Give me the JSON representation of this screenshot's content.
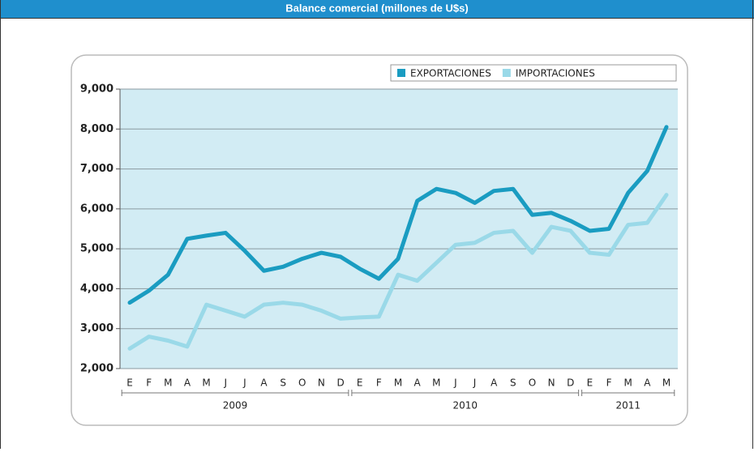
{
  "chart_data": {
    "type": "line",
    "title": "Balance comercial (millones de U$s)",
    "categories": [
      "E",
      "F",
      "M",
      "A",
      "M",
      "J",
      "J",
      "A",
      "S",
      "O",
      "N",
      "D",
      "E",
      "F",
      "M",
      "A",
      "M",
      "J",
      "J",
      "A",
      "S",
      "O",
      "N",
      "D",
      "E",
      "F",
      "M",
      "A",
      "M"
    ],
    "year_labels": [
      "2009",
      "2010",
      "2011"
    ],
    "series": [
      {
        "name": "EXPORTACIONES",
        "color": "#1a9cc1",
        "values": [
          3650,
          3950,
          4350,
          5250,
          5330,
          5400,
          4950,
          4450,
          4550,
          4750,
          4900,
          4800,
          4500,
          4250,
          4750,
          6200,
          6500,
          6400,
          6150,
          6450,
          6500,
          5850,
          5900,
          5700,
          5450,
          5500,
          6400,
          6950,
          8050
        ]
      },
      {
        "name": "IMPORTACIONES",
        "color": "#9ad9e8",
        "values": [
          2500,
          2800,
          2700,
          2550,
          3600,
          3450,
          3300,
          3600,
          3650,
          3600,
          3450,
          3250,
          3280,
          3300,
          4350,
          4200,
          4650,
          5100,
          5150,
          5400,
          5450,
          4900,
          5550,
          5450,
          4900,
          4850,
          5600,
          5650,
          6350
        ]
      }
    ],
    "ylim": [
      2000,
      9000
    ],
    "yticks": [
      {
        "value": 2000,
        "label": "2,000"
      },
      {
        "value": 3000,
        "label": "3,000"
      },
      {
        "value": 4000,
        "label": "4,000"
      },
      {
        "value": 5000,
        "label": "5,000"
      },
      {
        "value": 6000,
        "label": "6,000"
      },
      {
        "value": 7000,
        "label": "7,000"
      },
      {
        "value": 8000,
        "label": "8,000"
      },
      {
        "value": 9000,
        "label": "9,000"
      }
    ],
    "grid": true,
    "legend": "top-right"
  }
}
